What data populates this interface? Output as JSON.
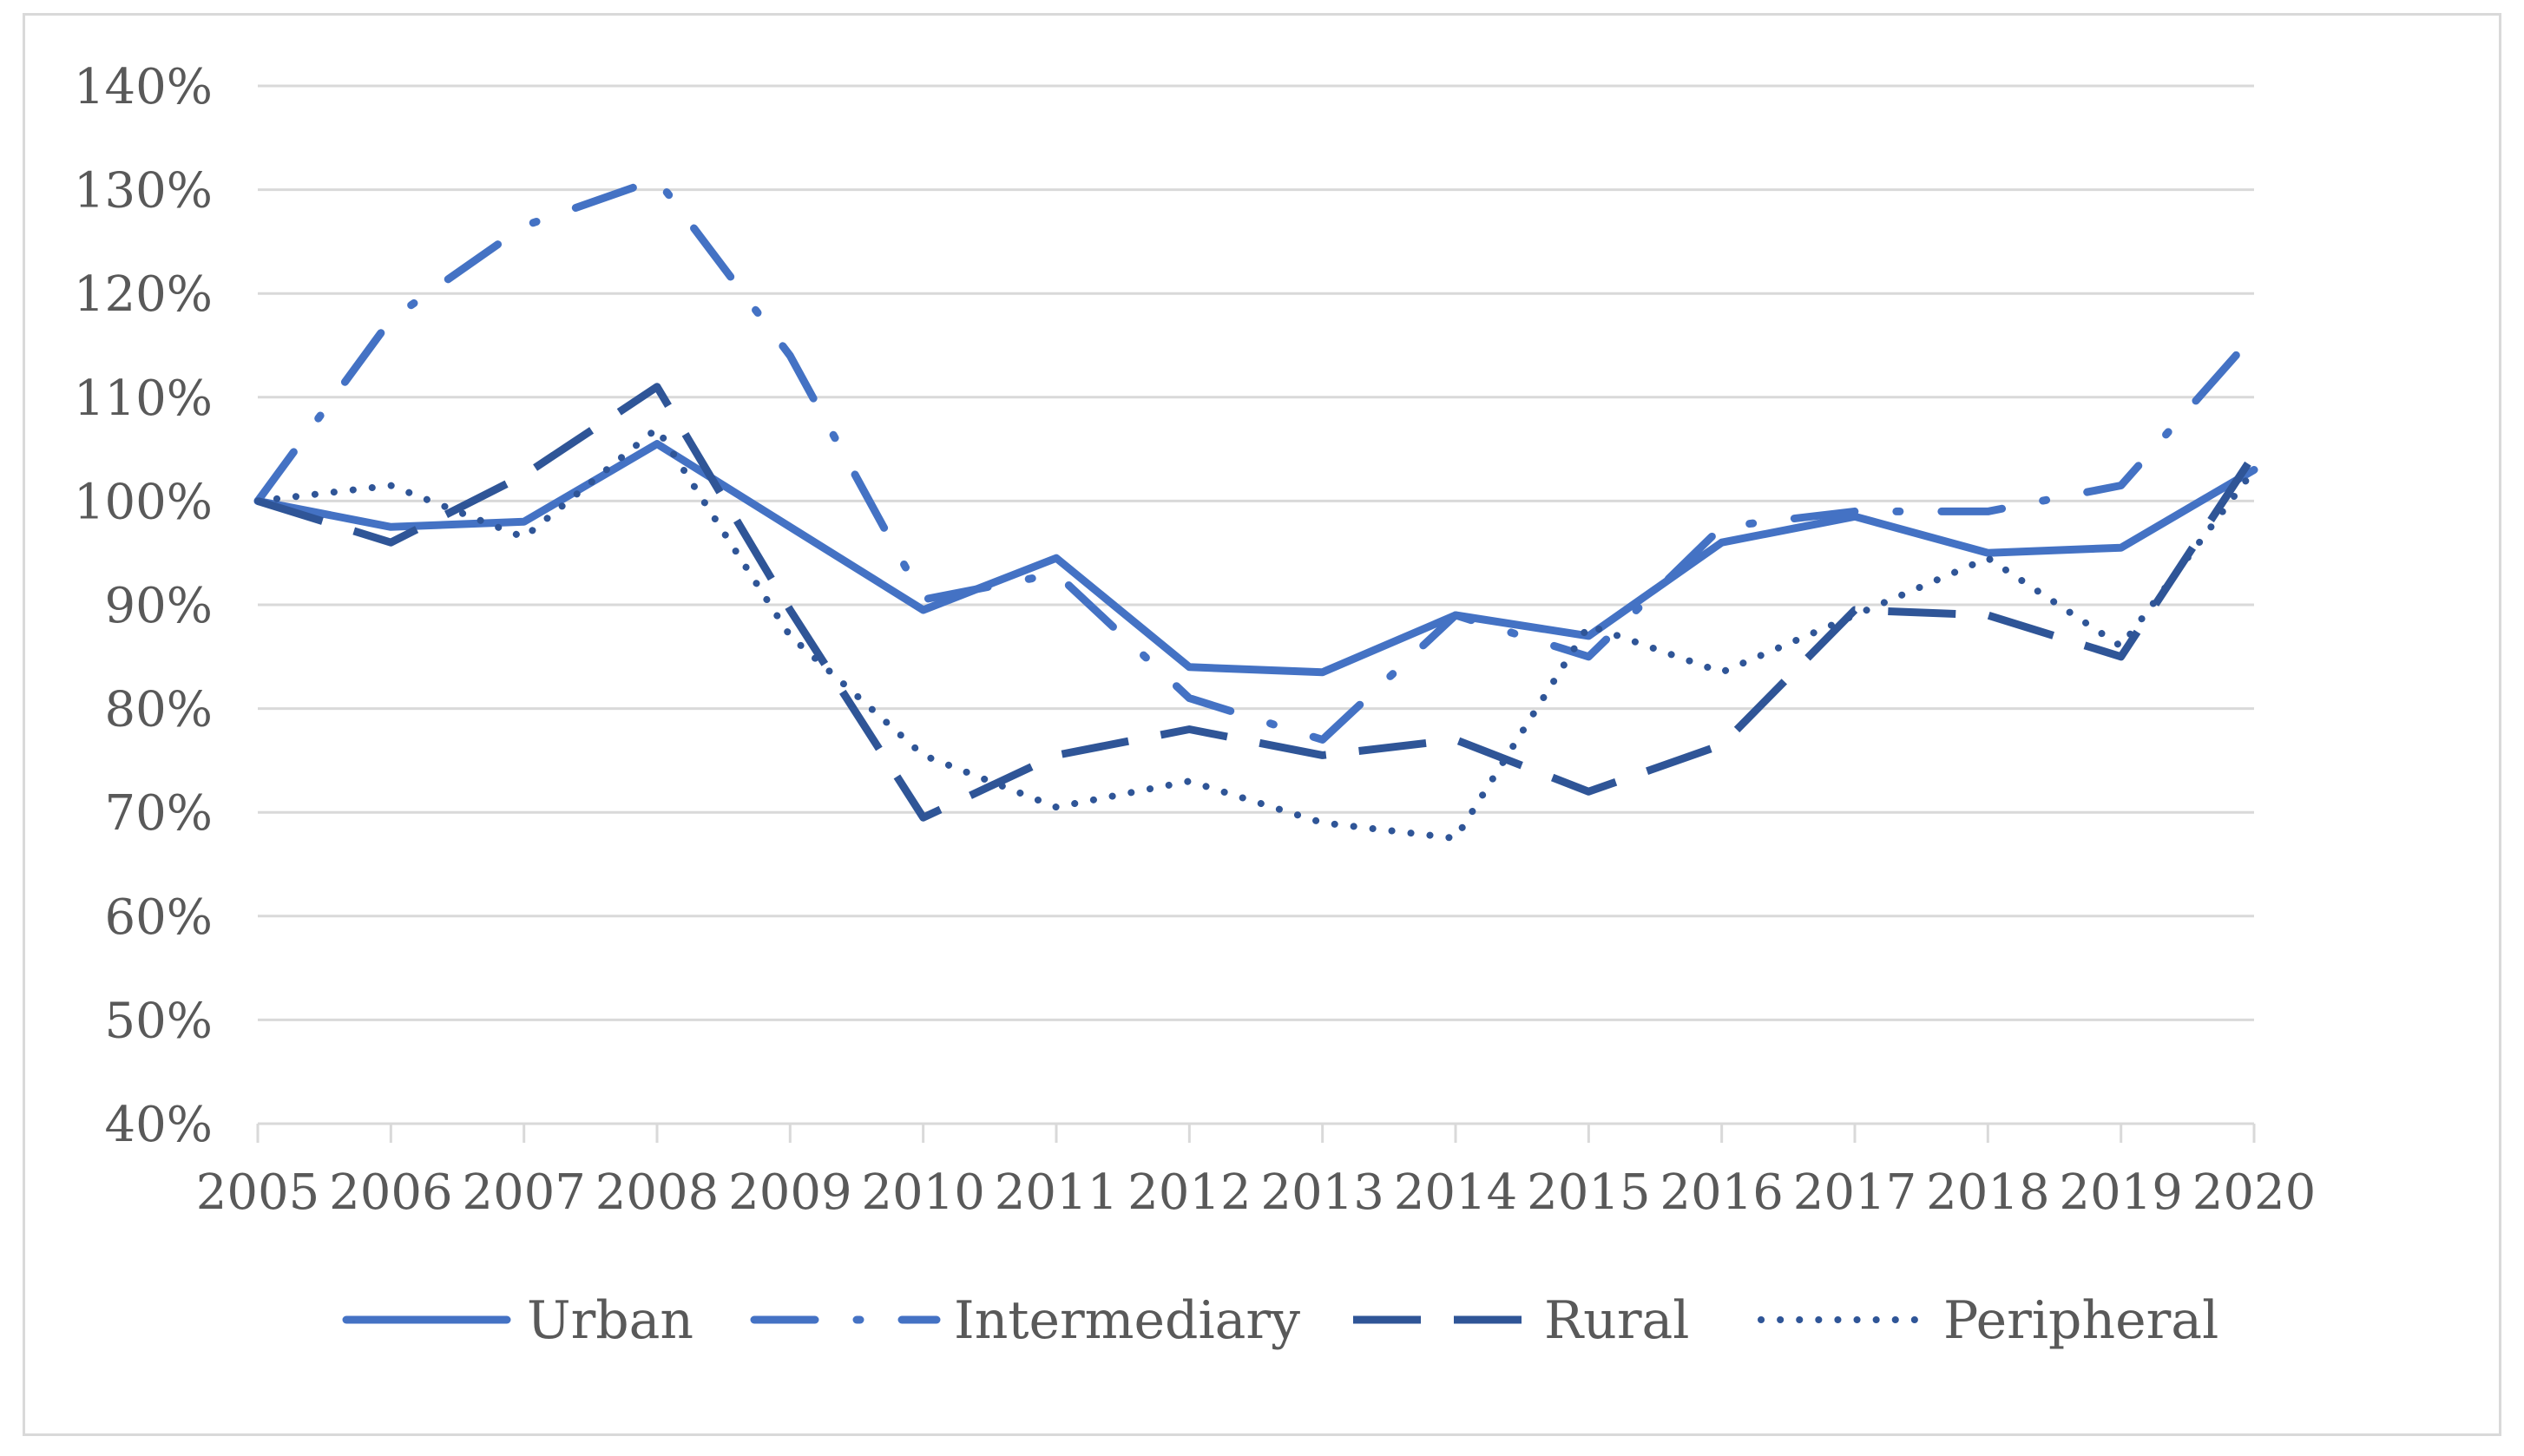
{
  "chart_data": {
    "type": "line",
    "title": "",
    "xlabel": "",
    "ylabel": "",
    "x": [
      "2005",
      "2006",
      "2007",
      "2008",
      "2009",
      "2010",
      "2011",
      "2012",
      "2013",
      "2014",
      "2015",
      "2016",
      "2017",
      "2018",
      "2019",
      "2020"
    ],
    "ylim": [
      40,
      140
    ],
    "yticks": [
      40,
      50,
      60,
      70,
      80,
      90,
      100,
      110,
      120,
      130,
      140
    ],
    "ytick_labels": [
      "40%",
      "50%",
      "60%",
      "70%",
      "80%",
      "90%",
      "100%",
      "110%",
      "120%",
      "130%",
      "140%"
    ],
    "grid": true,
    "legend_position": "bottom",
    "series": [
      {
        "name": "Urban",
        "color": "#4472c4",
        "style": "solid",
        "values": [
          100,
          97.5,
          98,
          105.5,
          97.5,
          89.5,
          94.5,
          84,
          83.5,
          89,
          87,
          96,
          98.5,
          95,
          95.5,
          103
        ]
      },
      {
        "name": "Intermediary",
        "color": "#4472c4",
        "style": "dash-dot",
        "values": [
          100,
          117.5,
          126.5,
          131,
          114,
          90.5,
          93,
          81,
          77,
          89,
          85,
          97.5,
          99,
          99,
          101.5,
          116
        ]
      },
      {
        "name": "Rural",
        "color": "#2f5597",
        "style": "dashed",
        "values": [
          100,
          96,
          102.5,
          111,
          89.5,
          69.5,
          75.5,
          78,
          75.5,
          77,
          72,
          76.5,
          89.5,
          89,
          85,
          104.5
        ]
      },
      {
        "name": "Peripheral",
        "color": "#2f5597",
        "style": "dotted",
        "values": [
          100,
          101.5,
          96.5,
          107,
          87,
          75.5,
          70.5,
          73,
          69,
          67.5,
          88,
          83.5,
          89,
          94.5,
          86,
          103
        ]
      }
    ]
  }
}
